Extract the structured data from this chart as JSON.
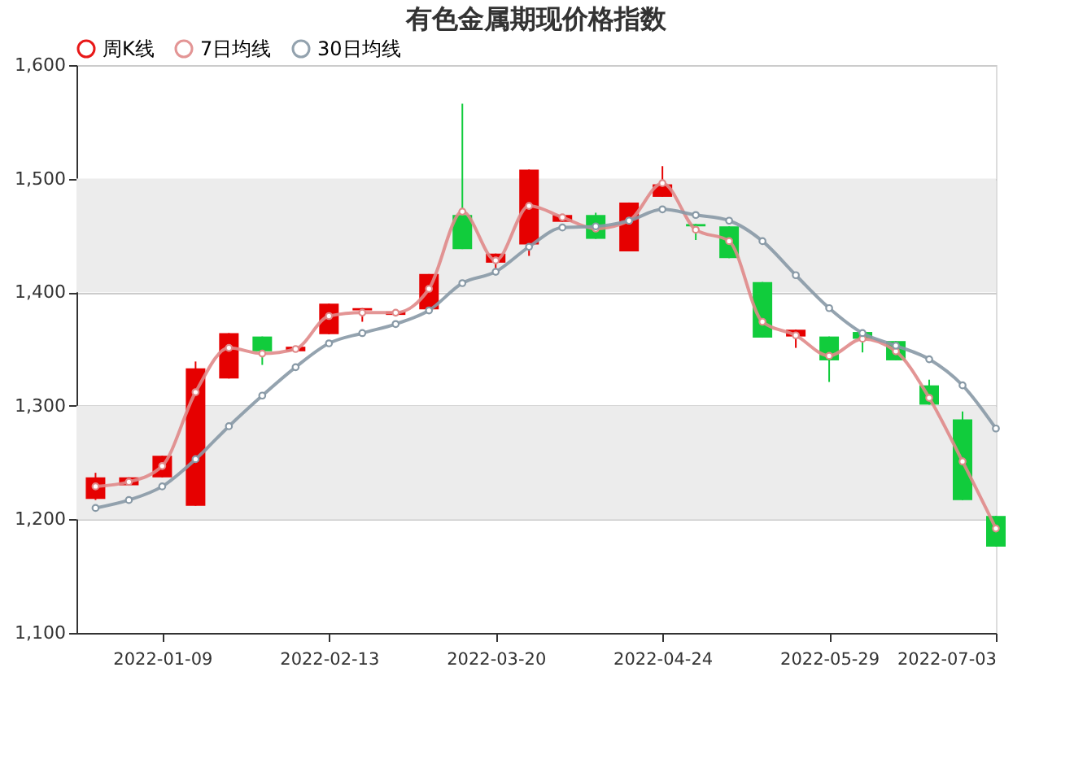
{
  "chart_data": {
    "type": "candlestick",
    "title": "有色金属期现价格指数",
    "x": [
      "2021-12-26",
      "2022-01-02",
      "2022-01-09",
      "2022-01-16",
      "2022-01-23",
      "2022-01-30",
      "2022-02-06",
      "2022-02-13",
      "2022-02-20",
      "2022-02-27",
      "2022-03-06",
      "2022-03-13",
      "2022-03-20",
      "2022-03-27",
      "2022-04-03",
      "2022-04-10",
      "2022-04-17",
      "2022-04-24",
      "2022-05-01",
      "2022-05-08",
      "2022-05-15",
      "2022-05-22",
      "2022-05-29",
      "2022-06-05",
      "2022-06-12",
      "2022-06-19",
      "2022-06-26",
      "2022-07-03"
    ],
    "series": [
      {
        "name": "周K线",
        "type": "candlestick",
        "ohlc": [
          [
            1218,
            1241,
            1217,
            1237
          ],
          [
            1230,
            1237,
            1230,
            1237
          ],
          [
            1237,
            1256,
            1237,
            1256
          ],
          [
            1212,
            1339,
            1212,
            1333
          ],
          [
            1324,
            1364,
            1324,
            1364
          ],
          [
            1361,
            1361,
            1336,
            1348
          ],
          [
            1348,
            1352,
            1348,
            1352
          ],
          [
            1363,
            1390,
            1363,
            1390
          ],
          [
            1384,
            1386,
            1374,
            1386
          ],
          [
            1380,
            1383,
            1380,
            1383
          ],
          [
            1385,
            1416,
            1385,
            1416
          ],
          [
            1468,
            1566,
            1438,
            1438
          ],
          [
            1426,
            1434,
            1421,
            1434
          ],
          [
            1442,
            1508,
            1432,
            1508
          ],
          [
            1462,
            1468,
            1462,
            1468
          ],
          [
            1468,
            1470,
            1447,
            1447
          ],
          [
            1436,
            1479,
            1436,
            1479
          ],
          [
            1484,
            1511,
            1484,
            1495
          ],
          [
            1460,
            1460,
            1446,
            1458
          ],
          [
            1458,
            1458,
            1430,
            1430
          ],
          [
            1409,
            1409,
            1360,
            1360
          ],
          [
            1361,
            1367,
            1351,
            1367
          ],
          [
            1361,
            1361,
            1321,
            1340
          ],
          [
            1365,
            1365,
            1347,
            1359
          ],
          [
            1357,
            1357,
            1340,
            1340
          ],
          [
            1318,
            1323,
            1301,
            1301
          ],
          [
            1288,
            1295,
            1217,
            1217
          ],
          [
            1203,
            1203,
            1176,
            1176
          ]
        ],
        "colors": [
          "#e60000",
          "#e60000",
          "#e60000",
          "#e60000",
          "#e60000",
          "#11cc3c",
          "#e60000",
          "#e60000",
          "#e60000",
          "#e60000",
          "#e60000",
          "#11cc3c",
          "#e60000",
          "#e60000",
          "#e60000",
          "#11cc3c",
          "#e60000",
          "#e60000",
          "#11cc3c",
          "#11cc3c",
          "#11cc3c",
          "#e60000",
          "#11cc3c",
          "#11cc3c",
          "#11cc3c",
          "#11cc3c",
          "#11cc3c",
          "#11cc3c"
        ]
      },
      {
        "name": "7日均线",
        "type": "line",
        "color": "#e08a8a",
        "values": [
          1229,
          1233,
          1247,
          1312,
          1351,
          1346,
          1350,
          1379,
          1382,
          1382,
          1403,
          1471,
          1428,
          1476,
          1466,
          1456,
          1463,
          1496,
          1455,
          1445,
          1374,
          1362,
          1344,
          1359,
          1348,
          1307,
          1251,
          1192
        ]
      },
      {
        "name": "30日均线",
        "type": "line",
        "color": "#8899a6",
        "values": [
          1210,
          1217,
          1229,
          1253,
          1282,
          1309,
          1334,
          1355,
          1364,
          1372,
          1384,
          1408,
          1418,
          1440,
          1457,
          1458,
          1463,
          1473,
          1468,
          1463,
          1445,
          1415,
          1386,
          1364,
          1353,
          1341,
          1318,
          1280
        ]
      }
    ],
    "xlim": [
      "2021-12-22",
      "2022-07-03"
    ],
    "xticks": [
      "2022-01-09",
      "2022-02-13",
      "2022-03-20",
      "2022-04-24",
      "2022-05-29",
      "2022-07-03"
    ],
    "ylim": [
      1100,
      1600
    ],
    "yticks": [
      {
        "value": 1100,
        "label": "1,100"
      },
      {
        "value": 1200,
        "label": "1,200"
      },
      {
        "value": 1300,
        "label": "1,300"
      },
      {
        "value": 1400,
        "label": "1,400"
      },
      {
        "value": 1500,
        "label": "1,500"
      },
      {
        "value": 1600,
        "label": "1,600"
      }
    ],
    "grid": "y",
    "legend": "top",
    "marker": "circle",
    "line_style": "solid"
  }
}
